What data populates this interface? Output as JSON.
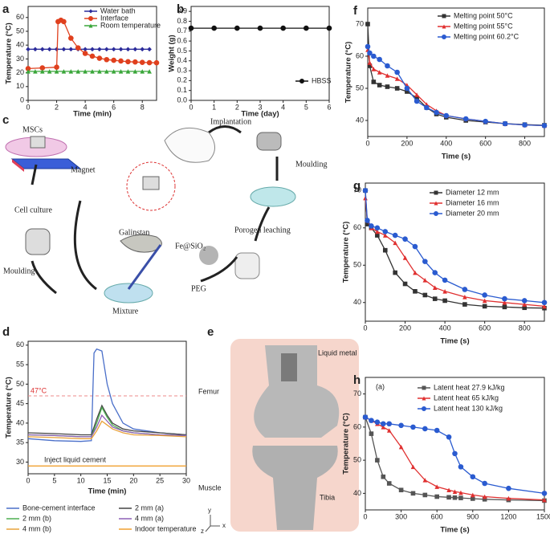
{
  "chart_data": [
    {
      "type": "line",
      "panel": "a",
      "xlabel": "Time (min)",
      "ylabel": "Temperature (°C)",
      "xlim": [
        0,
        9
      ],
      "xticks": [
        0,
        2,
        4,
        6,
        8
      ],
      "ylim": [
        0,
        68
      ],
      "yticks": [
        0,
        10,
        20,
        30,
        40,
        50,
        60
      ],
      "series": [
        {
          "name": "Water bath",
          "color": "#2b2b9a",
          "marker": "diamond",
          "x": [
            0,
            0.5,
            1,
            1.5,
            2,
            2.5,
            3,
            3.5,
            4,
            4.5,
            5,
            5.5,
            6,
            6.5,
            7,
            7.5,
            8,
            8.5
          ],
          "values": [
            37,
            37,
            37,
            37,
            37,
            37,
            37,
            37,
            37,
            37,
            37,
            37,
            37,
            37,
            37,
            37,
            37,
            37
          ]
        },
        {
          "name": "Interface",
          "color": "#e0401e",
          "marker": "circle",
          "x": [
            0,
            1,
            2,
            2.1,
            2.3,
            2.5,
            3,
            3.5,
            4,
            4.5,
            5,
            5.5,
            6,
            6.5,
            7,
            7.5,
            8,
            8.5,
            9
          ],
          "values": [
            23,
            23.5,
            24,
            57,
            58,
            57,
            45,
            38,
            34,
            32,
            30.5,
            29.5,
            29,
            28.5,
            28,
            27.8,
            27.5,
            27.3,
            27.2
          ]
        },
        {
          "name": "Room temperature",
          "color": "#3aa63a",
          "marker": "triangle",
          "x": [
            0,
            0.5,
            1,
            1.5,
            2,
            2.5,
            3,
            3.5,
            4,
            4.5,
            5,
            5.5,
            6,
            6.5,
            7,
            7.5,
            8,
            8.5
          ],
          "values": [
            21,
            21,
            21,
            21,
            21,
            21,
            21,
            21,
            21,
            21,
            21,
            21,
            21,
            21,
            21,
            21,
            21,
            21
          ]
        }
      ]
    },
    {
      "type": "line",
      "panel": "b",
      "xlabel": "Time (day)",
      "ylabel": "Weight (g)",
      "xlim": [
        0,
        6
      ],
      "xticks": [
        0,
        1,
        2,
        3,
        4,
        5,
        6
      ],
      "ylim": [
        0,
        0.95
      ],
      "yticks": [
        {
          "value": 0,
          "label": "0.0"
        },
        0.1,
        0.2,
        0.3,
        0.4,
        0.5,
        0.6,
        0.7,
        0.8,
        0.9
      ],
      "series": [
        {
          "name": "HBSS",
          "color": "#111111",
          "marker": "circle",
          "x": [
            0,
            1,
            2,
            3,
            4,
            5,
            6
          ],
          "values": [
            0.73,
            0.73,
            0.73,
            0.73,
            0.73,
            0.73,
            0.73
          ]
        }
      ]
    },
    {
      "type": "line",
      "panel": "d",
      "xlabel": "Time (min)",
      "ylabel": "Temperature (°C)",
      "xlim": [
        0,
        30
      ],
      "xticks": [
        0,
        5,
        10,
        15,
        20,
        25,
        30
      ],
      "ylim": [
        27,
        61
      ],
      "yticks": [
        30,
        35,
        40,
        45,
        50,
        55,
        60
      ],
      "ref_lines": [
        {
          "value": 47,
          "label": "47°C"
        }
      ],
      "annotations": [
        "Inject liquid cement"
      ],
      "series": [
        {
          "name": "Bone-cement interface",
          "color": "#4a6fc9",
          "x": [
            0,
            5,
            10,
            12,
            12.5,
            13,
            14,
            15,
            16,
            18,
            20,
            25,
            30
          ],
          "values": [
            36,
            35.5,
            35.3,
            35.5,
            58,
            59,
            58.5,
            50,
            45,
            40,
            38.5,
            37.5,
            37
          ]
        },
        {
          "name": "2 mm (a)",
          "color": "#444444",
          "x": [
            0,
            5,
            10,
            12,
            13,
            14,
            15,
            16,
            18,
            20,
            25,
            30
          ],
          "values": [
            37.5,
            37.3,
            37,
            37,
            41,
            44.5,
            42,
            40,
            38.5,
            38,
            37.5,
            37
          ]
        },
        {
          "name": "2 mm (b)",
          "color": "#4caf50",
          "x": [
            0,
            5,
            10,
            12,
            13,
            14,
            15,
            16,
            18,
            20,
            25,
            30
          ],
          "values": [
            37,
            36.8,
            36.5,
            36.5,
            40,
            44,
            41.5,
            39.5,
            38,
            37.5,
            37,
            36.8
          ]
        },
        {
          "name": "4 mm (a)",
          "color": "#8e5fb5",
          "x": [
            0,
            5,
            10,
            12,
            13,
            14,
            15,
            16,
            18,
            20,
            25,
            30
          ],
          "values": [
            37,
            36.8,
            36.5,
            36.5,
            39,
            42,
            40.5,
            39,
            38,
            37.5,
            37,
            36.8
          ]
        },
        {
          "name": "4 mm (b)",
          "color": "#e8a23a",
          "x": [
            0,
            5,
            10,
            12,
            13,
            14,
            15,
            16,
            18,
            20,
            25,
            30
          ],
          "values": [
            36.5,
            36.3,
            36,
            36,
            38,
            40.5,
            39.5,
            38.5,
            37.5,
            37,
            36.8,
            36.5
          ]
        },
        {
          "name": "Indoor temperature",
          "color": "#f0a030",
          "x": [
            0,
            5,
            10,
            15,
            20,
            25,
            30
          ],
          "values": [
            29,
            29,
            29,
            29,
            29,
            29,
            29
          ]
        }
      ]
    },
    {
      "type": "line",
      "panel": "f",
      "xlabel": "Time (s)",
      "ylabel": "Temperature (°C)",
      "xlim": [
        0,
        900
      ],
      "xticks": [
        0,
        200,
        400,
        600,
        800
      ],
      "ylim": [
        35,
        75
      ],
      "yticks": [
        40,
        50,
        60,
        70
      ],
      "series": [
        {
          "name": "Melting point 50°C",
          "color": "#333333",
          "marker": "square",
          "x": [
            0,
            10,
            30,
            60,
            100,
            150,
            200,
            250,
            300,
            350,
            400,
            500,
            600,
            700,
            800,
            900
          ],
          "values": [
            70,
            57,
            52,
            51,
            50.5,
            50,
            49,
            47,
            44,
            42,
            41,
            40,
            39.5,
            39,
            38.7,
            38.5
          ]
        },
        {
          "name": "Melting point 55°C",
          "color": "#e03030",
          "marker": "triangle",
          "x": [
            0,
            10,
            30,
            60,
            100,
            150,
            200,
            250,
            300,
            350,
            400,
            500,
            600,
            700,
            800,
            900
          ],
          "values": [
            62,
            58,
            56,
            55,
            54,
            53,
            51,
            48,
            45,
            43,
            41.5,
            40.5,
            39.7,
            39,
            38.6,
            38.4
          ]
        },
        {
          "name": "Melting point 60.2°C",
          "color": "#2a5bd0",
          "marker": "circle",
          "x": [
            0,
            10,
            30,
            60,
            100,
            150,
            200,
            250,
            300,
            350,
            400,
            500,
            600,
            700,
            800,
            900
          ],
          "values": [
            63,
            61,
            60,
            59,
            57,
            55,
            50,
            46,
            44,
            42.5,
            41.5,
            40.5,
            39.7,
            39,
            38.6,
            38.4
          ]
        }
      ]
    },
    {
      "type": "line",
      "panel": "g",
      "xlabel": "Time (s)",
      "ylabel": "Temperature (°C)",
      "xlim": [
        0,
        900
      ],
      "xticks": [
        0,
        200,
        400,
        600,
        800
      ],
      "ylim": [
        35,
        72
      ],
      "yticks": [
        40,
        50,
        60,
        70
      ],
      "series": [
        {
          "name": "Diameter 12 mm",
          "color": "#333333",
          "marker": "square",
          "x": [
            0,
            10,
            30,
            60,
            100,
            150,
            200,
            250,
            300,
            350,
            400,
            500,
            600,
            700,
            800,
            900
          ],
          "values": [
            70,
            61,
            60,
            58,
            54,
            48,
            45,
            43,
            42,
            41,
            40.5,
            39.5,
            39,
            38.8,
            38.6,
            38.5
          ]
        },
        {
          "name": "Diameter 16 mm",
          "color": "#e03030",
          "marker": "triangle",
          "x": [
            0,
            10,
            30,
            60,
            100,
            150,
            200,
            250,
            300,
            350,
            400,
            500,
            600,
            700,
            800,
            900
          ],
          "values": [
            68,
            62,
            60,
            59,
            58,
            56,
            52,
            48,
            46,
            44,
            43,
            41.5,
            40.5,
            40,
            39.5,
            39
          ]
        },
        {
          "name": "Diameter 20 mm",
          "color": "#2a5bd0",
          "marker": "circle",
          "x": [
            0,
            10,
            30,
            60,
            100,
            150,
            200,
            250,
            300,
            350,
            400,
            500,
            600,
            700,
            800,
            900
          ],
          "values": [
            70,
            62,
            60.5,
            60,
            59,
            58,
            57,
            55,
            51,
            48,
            46,
            43.5,
            42,
            41,
            40.5,
            40
          ]
        }
      ]
    },
    {
      "type": "line",
      "panel": "h",
      "xlabel": "Time (s)",
      "ylabel": "Temperature (°C)",
      "xlim": [
        0,
        1500
      ],
      "xticks": [
        0,
        300,
        600,
        900,
        1200,
        1500
      ],
      "ylim": [
        35,
        75
      ],
      "yticks": [
        40,
        50,
        60,
        70
      ],
      "annotations": [
        "(a)"
      ],
      "series": [
        {
          "name": "Latent heat 27.9 kJ/kg",
          "color": "#555555",
          "marker": "square",
          "x": [
            0,
            50,
            100,
            150,
            200,
            300,
            400,
            500,
            600,
            700,
            750,
            800,
            900,
            1000,
            1200,
            1500
          ],
          "values": [
            63,
            58,
            50,
            45,
            43,
            41,
            40,
            39.5,
            39,
            38.8,
            38.7,
            38.6,
            38.4,
            38.2,
            38,
            37.8
          ]
        },
        {
          "name": "Latent heat 65 kJ/kg",
          "color": "#e03030",
          "marker": "triangle",
          "x": [
            0,
            50,
            100,
            150,
            200,
            300,
            400,
            500,
            600,
            700,
            750,
            800,
            900,
            1000,
            1200,
            1500
          ],
          "values": [
            63,
            62,
            61,
            60,
            59,
            54,
            48,
            44,
            42,
            41,
            40.5,
            40.2,
            39.5,
            39,
            38.5,
            38
          ]
        },
        {
          "name": "Latent heat 130 kJ/kg",
          "color": "#2a5bd0",
          "marker": "circle",
          "x": [
            0,
            50,
            100,
            150,
            200,
            300,
            400,
            500,
            600,
            700,
            750,
            800,
            900,
            1000,
            1200,
            1500
          ],
          "values": [
            63,
            62,
            61.5,
            61,
            61,
            60.5,
            60,
            59.5,
            59,
            57,
            52,
            48,
            45,
            43,
            41.5,
            40
          ]
        }
      ]
    }
  ],
  "diagram_c": {
    "panel": "c",
    "labels": [
      "MSCs",
      "Magnet",
      "Cell culture",
      "Moulding",
      "Galinstan",
      "Fe@SiO₂",
      "Mixture",
      "PEG",
      "Porogen leaching",
      "Moulding",
      "Implantation"
    ]
  },
  "figure_e": {
    "panel": "e",
    "labels": [
      "Liquid metal",
      "Femur",
      "Muscle",
      "Tibia",
      "y",
      "z",
      "x"
    ]
  }
}
